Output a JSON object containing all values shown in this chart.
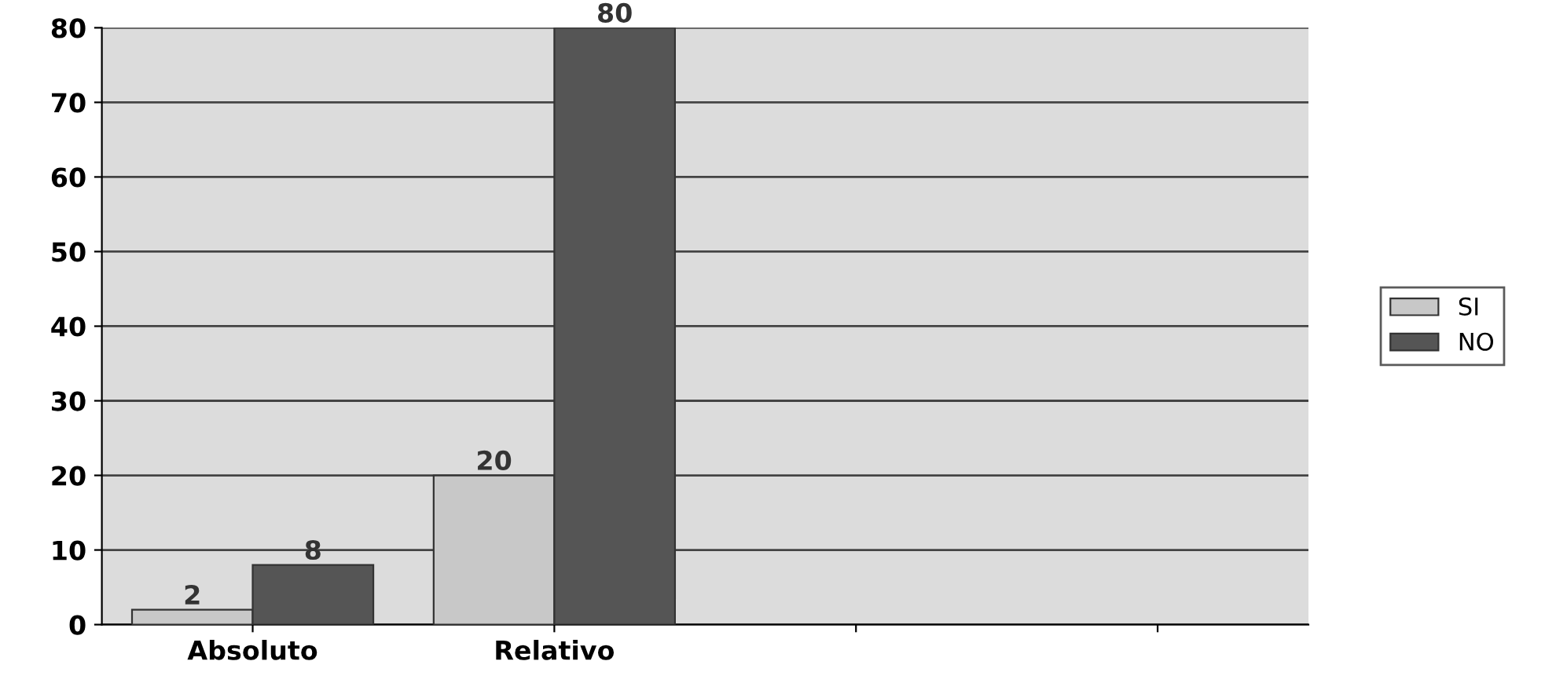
{
  "chart_data": {
    "type": "bar",
    "categories": [
      "Absoluto",
      "Relativo",
      null,
      null
    ],
    "series": [
      {
        "name": "SI",
        "color": "#c8c8c8",
        "values": [
          2,
          20,
          null,
          null
        ]
      },
      {
        "name": "NO",
        "color": "#555555",
        "values": [
          8,
          80,
          null,
          null
        ]
      }
    ],
    "ylim": [
      0,
      80
    ],
    "yticks": [
      0,
      10,
      20,
      30,
      40,
      50,
      60,
      70,
      80
    ],
    "grid": "y",
    "legend": "right",
    "data_labels": true
  }
}
